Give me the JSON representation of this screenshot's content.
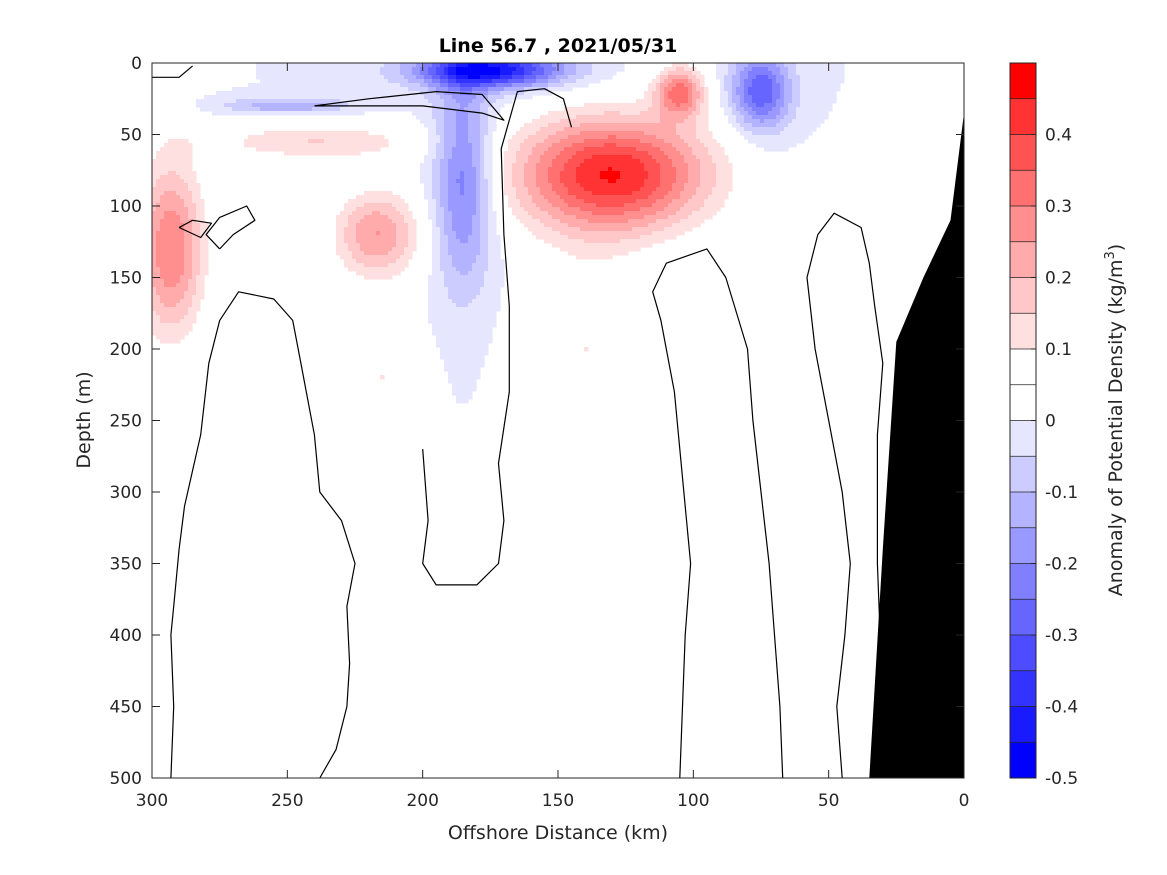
{
  "chart_data": {
    "type": "heatmap",
    "title": "Line 56.7 , 2021/05/31",
    "xlabel": "Offshore Distance (km)",
    "ylabel": "Depth (m)",
    "xlim": [
      300,
      0
    ],
    "ylim": [
      0,
      500
    ],
    "x_reversed": true,
    "y_reversed": true,
    "x_ticks": [
      300,
      250,
      200,
      150,
      100,
      50,
      0
    ],
    "y_ticks": [
      0,
      50,
      100,
      150,
      200,
      250,
      300,
      350,
      400,
      450,
      500
    ],
    "colorbar": {
      "label": "Anomaly of Potential Density (kg/m",
      "label_superscript": "3",
      "label_suffix": ")",
      "range": [
        -0.5,
        0.5
      ],
      "tick_values": [
        -0.5,
        -0.4,
        -0.3,
        -0.2,
        -0.1,
        0,
        0.1,
        0.2,
        0.3,
        0.4
      ],
      "tick_labels": [
        "-0.5",
        "-0.4",
        "-0.3",
        "-0.2",
        "-0.1",
        "0",
        "0.1",
        "0.2",
        "0.3",
        "0.4"
      ],
      "levels": [
        -0.5,
        -0.45,
        -0.4,
        -0.35,
        -0.3,
        -0.25,
        -0.2,
        -0.15,
        -0.1,
        -0.05,
        0,
        0.05,
        0.1,
        0.15,
        0.2,
        0.25,
        0.3,
        0.35,
        0.4,
        0.45,
        0.5
      ],
      "colors": [
        "#0000ff",
        "#1a1aff",
        "#3333ff",
        "#4d4dff",
        "#6666ff",
        "#8080ff",
        "#9999ff",
        "#b3b3ff",
        "#ccccff",
        "#e6e6ff",
        "#ffffff",
        "#ffffff",
        "#ffe0e0",
        "#ffc7c7",
        "#ffabab",
        "#ff8f8f",
        "#ff7070",
        "#ff5252",
        "#ff3333",
        "#ff0000"
      ]
    },
    "anomaly_features": [
      {
        "sign": "positive",
        "x_center": 130,
        "depth_center": 78,
        "x_halfwidth": 40,
        "depth_halfwidth": 45,
        "peak": 0.45
      },
      {
        "sign": "positive",
        "x_center": 140,
        "depth_center": 200,
        "x_halfwidth": 25,
        "depth_halfwidth": 80,
        "peak": 0.1
      },
      {
        "sign": "positive",
        "x_center": 293,
        "depth_center": 130,
        "x_halfwidth": 14,
        "depth_halfwidth": 70,
        "peak": 0.3
      },
      {
        "sign": "positive",
        "x_center": 217,
        "depth_center": 120,
        "x_halfwidth": 18,
        "depth_halfwidth": 35,
        "peak": 0.25
      },
      {
        "sign": "positive",
        "x_center": 240,
        "depth_center": 55,
        "x_halfwidth": 45,
        "depth_halfwidth": 15,
        "peak": 0.15
      },
      {
        "sign": "positive",
        "x_center": 105,
        "depth_center": 20,
        "x_halfwidth": 10,
        "depth_halfwidth": 20,
        "peak": 0.3
      },
      {
        "sign": "positive",
        "x_center": 215,
        "depth_center": 220,
        "x_halfwidth": 15,
        "depth_halfwidth": 45,
        "peak": 0.1
      },
      {
        "sign": "negative",
        "x_center": 175,
        "depth_center": 5,
        "x_halfwidth": 30,
        "depth_halfwidth": 14,
        "peak": -0.45
      },
      {
        "sign": "negative",
        "x_center": 185,
        "depth_center": 80,
        "x_halfwidth": 12,
        "depth_halfwidth": 80,
        "peak": -0.25
      },
      {
        "sign": "negative",
        "x_center": 75,
        "depth_center": 20,
        "x_halfwidth": 12,
        "depth_halfwidth": 30,
        "peak": -0.3
      },
      {
        "sign": "negative",
        "x_center": 250,
        "depth_center": 30,
        "x_halfwidth": 25,
        "depth_halfwidth": 6,
        "peak": -0.15
      }
    ],
    "zero_contours": [
      [
        [
          293,
          500
        ],
        [
          292,
          450
        ],
        [
          293,
          400
        ],
        [
          292,
          380
        ],
        [
          290,
          340
        ],
        [
          288,
          310
        ],
        [
          282,
          260
        ],
        [
          279,
          210
        ],
        [
          275,
          180
        ],
        [
          268,
          160
        ],
        [
          255,
          165
        ],
        [
          248,
          180
        ],
        [
          245,
          210
        ],
        [
          240,
          260
        ],
        [
          238,
          300
        ],
        [
          230,
          320
        ],
        [
          225,
          350
        ],
        [
          228,
          380
        ],
        [
          227,
          420
        ],
        [
          228,
          450
        ],
        [
          232,
          480
        ],
        [
          238,
          500
        ]
      ],
      [
        [
          200,
          270
        ],
        [
          198,
          320
        ],
        [
          200,
          350
        ],
        [
          195,
          365
        ],
        [
          180,
          365
        ],
        [
          172,
          350
        ],
        [
          170,
          320
        ],
        [
          172,
          280
        ],
        [
          168,
          230
        ],
        [
          168,
          170
        ],
        [
          170,
          120
        ],
        [
          171,
          60
        ],
        [
          165,
          20
        ],
        [
          155,
          18
        ],
        [
          148,
          25
        ],
        [
          145,
          45
        ]
      ],
      [
        [
          105,
          500
        ],
        [
          104,
          450
        ],
        [
          103,
          400
        ],
        [
          101,
          350
        ],
        [
          103,
          310
        ],
        [
          105,
          270
        ],
        [
          107,
          230
        ],
        [
          112,
          180
        ],
        [
          115,
          160
        ],
        [
          110,
          140
        ],
        [
          95,
          130
        ],
        [
          88,
          150
        ],
        [
          80,
          200
        ],
        [
          78,
          250
        ],
        [
          75,
          300
        ],
        [
          72,
          350
        ],
        [
          70,
          400
        ],
        [
          68,
          450
        ],
        [
          67,
          500
        ]
      ],
      [
        [
          45,
          500
        ],
        [
          47,
          450
        ],
        [
          44,
          400
        ],
        [
          42,
          350
        ],
        [
          45,
          300
        ],
        [
          50,
          250
        ],
        [
          55,
          200
        ],
        [
          58,
          150
        ],
        [
          54,
          120
        ],
        [
          48,
          105
        ],
        [
          38,
          115
        ],
        [
          35,
          140
        ],
        [
          33,
          170
        ],
        [
          30,
          210
        ],
        [
          32,
          260
        ],
        [
          32,
          300
        ]
      ],
      [
        [
          30,
          500
        ],
        [
          30,
          450
        ],
        [
          31,
          400
        ],
        [
          32,
          350
        ],
        [
          32,
          300
        ]
      ],
      [
        [
          300,
          10
        ],
        [
          290,
          10
        ],
        [
          285,
          2
        ]
      ],
      [
        [
          240,
          30
        ],
        [
          200,
          30
        ],
        [
          178,
          35
        ],
        [
          170,
          40
        ],
        [
          178,
          22
        ],
        [
          195,
          20
        ],
        [
          220,
          25
        ],
        [
          240,
          30
        ]
      ],
      [
        [
          275,
          130
        ],
        [
          270,
          120
        ],
        [
          262,
          110
        ],
        [
          265,
          100
        ],
        [
          275,
          108
        ],
        [
          280,
          120
        ],
        [
          275,
          130
        ]
      ],
      [
        [
          290,
          115
        ],
        [
          285,
          110
        ],
        [
          278,
          112
        ],
        [
          282,
          122
        ],
        [
          290,
          115
        ]
      ]
    ],
    "land_mask": [
      [
        35,
        500
      ],
      [
        30,
        340
      ],
      [
        25,
        195
      ],
      [
        15,
        150
      ],
      [
        5,
        110
      ],
      [
        0,
        35
      ],
      [
        0,
        500
      ]
    ]
  }
}
